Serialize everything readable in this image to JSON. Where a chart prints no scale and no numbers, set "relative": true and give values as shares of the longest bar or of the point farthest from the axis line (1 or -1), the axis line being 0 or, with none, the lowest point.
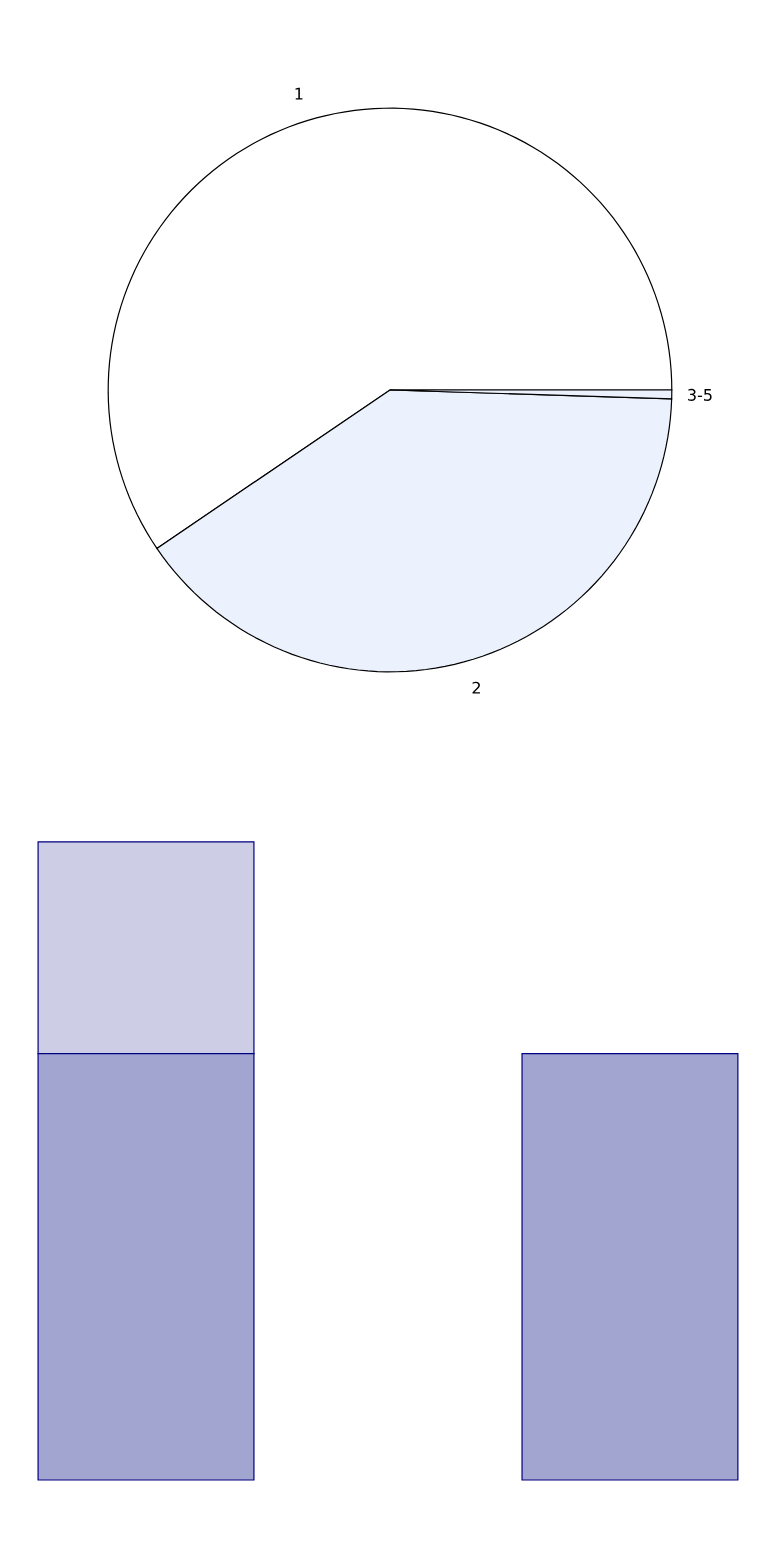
{
  "chart_data": [
    {
      "type": "pie",
      "categories": [
        "1",
        "2",
        "3-5"
      ],
      "values": [
        59.5,
        40,
        0.5
      ],
      "colors": [
        "#ffffff",
        "#ebf1fd",
        "#ebf1fd"
      ]
    },
    {
      "type": "bar",
      "stacked": true,
      "relative": true,
      "categories": [
        null,
        null
      ],
      "series": [
        {
          "color": "#a3a5d1",
          "values": [
            0.668,
            0.668
          ]
        },
        {
          "color": "#cdcee6",
          "values": [
            0.332,
            null
          ]
        }
      ]
    }
  ]
}
